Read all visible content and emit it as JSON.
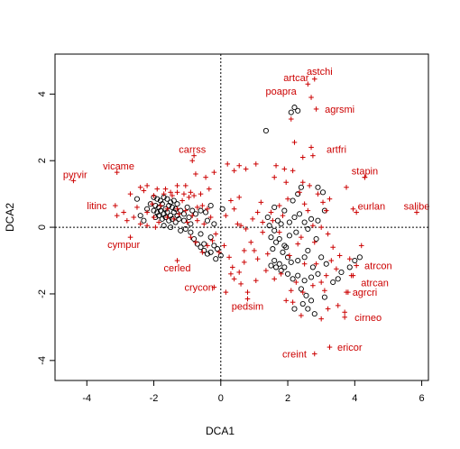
{
  "chart_data": {
    "type": "scatter",
    "title": "",
    "xlabel": "DCA1",
    "ylabel": "DCA2",
    "xlim": [
      -4.95,
      6.2
    ],
    "ylim": [
      -4.6,
      5.2
    ],
    "xticks": [
      "-4",
      "-2",
      "0",
      "2",
      "4",
      "6"
    ],
    "yticks": [
      "-4",
      "-2",
      "0",
      "2",
      "4"
    ],
    "reference_lines": {
      "x": 0,
      "y": 0,
      "style": "dotted"
    },
    "grid": false,
    "legend": "none",
    "colors": {
      "sites": "#000000",
      "species": "#cc0000"
    },
    "sites": [
      [
        -2.0,
        0.9
      ],
      [
        -1.9,
        0.85
      ],
      [
        -1.8,
        0.8
      ],
      [
        -1.7,
        0.9
      ],
      [
        -1.6,
        0.85
      ],
      [
        -1.5,
        0.75
      ],
      [
        -1.4,
        0.8
      ],
      [
        -1.3,
        0.7
      ],
      [
        -2.1,
        0.7
      ],
      [
        -1.95,
        0.65
      ],
      [
        -1.85,
        0.6
      ],
      [
        -1.75,
        0.7
      ],
      [
        -1.65,
        0.55
      ],
      [
        -1.55,
        0.65
      ],
      [
        -1.45,
        0.6
      ],
      [
        -1.35,
        0.55
      ],
      [
        -2.0,
        0.5
      ],
      [
        -1.9,
        0.45
      ],
      [
        -1.8,
        0.5
      ],
      [
        -1.7,
        0.4
      ],
      [
        -1.6,
        0.45
      ],
      [
        -1.5,
        0.35
      ],
      [
        -1.4,
        0.45
      ],
      [
        -1.3,
        0.35
      ],
      [
        -1.2,
        0.5
      ],
      [
        -1.1,
        0.4
      ],
      [
        -1.0,
        0.6
      ],
      [
        -0.95,
        0.3
      ],
      [
        -0.85,
        0.5
      ],
      [
        -0.75,
        0.4
      ],
      [
        -0.6,
        0.5
      ],
      [
        -0.45,
        0.45
      ],
      [
        -1.95,
        0.3
      ],
      [
        -1.85,
        0.35
      ],
      [
        -1.75,
        0.25
      ],
      [
        -1.65,
        0.3
      ],
      [
        -1.55,
        0.2
      ],
      [
        -1.45,
        0.25
      ],
      [
        -1.35,
        0.15
      ],
      [
        -1.25,
        0.25
      ],
      [
        -2.4,
        0.35
      ],
      [
        -2.2,
        0.55
      ],
      [
        -2.3,
        0.2
      ],
      [
        -2.5,
        0.85
      ],
      [
        -1.7,
        0.05
      ],
      [
        -1.5,
        0.0
      ],
      [
        -1.1,
        0.2
      ],
      [
        -0.9,
        0.1
      ],
      [
        -1.2,
        -0.1
      ],
      [
        -0.9,
        -0.15
      ],
      [
        -0.8,
        -0.35
      ],
      [
        -0.7,
        -0.5
      ],
      [
        -0.6,
        -0.6
      ],
      [
        -0.5,
        -0.7
      ],
      [
        -0.4,
        -0.8
      ],
      [
        -0.3,
        -0.75
      ],
      [
        -0.5,
        -0.5
      ],
      [
        -0.3,
        -0.3
      ],
      [
        -0.2,
        -0.55
      ],
      [
        -0.1,
        -0.65
      ],
      [
        0.0,
        -0.85
      ],
      [
        -0.15,
        -0.95
      ],
      [
        -0.3,
        0.65
      ],
      [
        -0.4,
        0.2
      ],
      [
        -0.6,
        -0.2
      ],
      [
        -1.05,
        -0.05
      ],
      [
        -0.2,
        0.1
      ],
      [
        0.05,
        0.55
      ],
      [
        1.35,
        2.9
      ],
      [
        2.1,
        3.45
      ],
      [
        2.3,
        3.5
      ],
      [
        2.2,
        3.6
      ],
      [
        1.6,
        0.6
      ],
      [
        1.9,
        0.5
      ],
      [
        2.2,
        0.3
      ],
      [
        2.35,
        0.4
      ],
      [
        2.7,
        0.25
      ],
      [
        2.5,
        0.15
      ],
      [
        2.9,
        0.2
      ],
      [
        3.1,
        0.5
      ],
      [
        2.4,
        1.2
      ],
      [
        2.3,
        1.0
      ],
      [
        3.05,
        1.05
      ],
      [
        2.9,
        1.2
      ],
      [
        2.15,
        0.8
      ],
      [
        1.45,
        0.05
      ],
      [
        1.6,
        -0.1
      ],
      [
        1.8,
        0.1
      ],
      [
        1.5,
        -0.3
      ],
      [
        1.65,
        -0.45
      ],
      [
        1.75,
        -0.35
      ],
      [
        1.9,
        -0.55
      ],
      [
        2.05,
        -0.25
      ],
      [
        1.55,
        -0.65
      ],
      [
        1.85,
        -0.75
      ],
      [
        2.0,
        -0.9
      ],
      [
        1.6,
        -1.0
      ],
      [
        1.75,
        -1.1
      ],
      [
        1.9,
        -1.2
      ],
      [
        2.1,
        -1.05
      ],
      [
        2.3,
        -1.0
      ],
      [
        2.5,
        -0.9
      ],
      [
        2.6,
        -0.7
      ],
      [
        2.75,
        -1.2
      ],
      [
        2.9,
        -1.4
      ],
      [
        2.7,
        -1.5
      ],
      [
        2.5,
        -1.6
      ],
      [
        2.3,
        -1.45
      ],
      [
        2.15,
        -1.55
      ],
      [
        2.0,
        -1.4
      ],
      [
        1.8,
        -1.3
      ],
      [
        1.65,
        -1.2
      ],
      [
        1.5,
        -1.15
      ],
      [
        2.4,
        -1.85
      ],
      [
        2.55,
        -2.05
      ],
      [
        2.7,
        -2.2
      ],
      [
        2.45,
        -2.3
      ],
      [
        2.2,
        -2.45
      ],
      [
        2.6,
        -2.45
      ],
      [
        2.8,
        -2.6
      ],
      [
        3.1,
        -2.1
      ],
      [
        3.35,
        -1.65
      ],
      [
        3.6,
        -1.35
      ],
      [
        3.85,
        -1.2
      ],
      [
        4.0,
        -1.0
      ],
      [
        4.15,
        -0.9
      ],
      [
        3.5,
        -1.55
      ],
      [
        3.15,
        -1.1
      ],
      [
        1.95,
        -0.6
      ],
      [
        2.85,
        -0.35
      ],
      [
        3.0,
        -0.9
      ],
      [
        1.4,
        0.3
      ],
      [
        2.05,
        0.15
      ],
      [
        2.6,
        -0.05
      ],
      [
        2.25,
        -0.15
      ],
      [
        1.7,
        0.2
      ]
    ],
    "species_points": [
      [
        -2.3,
        1.1
      ],
      [
        -2.0,
        0.95
      ],
      [
        -1.8,
        0.65
      ],
      [
        -1.6,
        0.55
      ],
      [
        -1.45,
        0.95
      ],
      [
        -1.3,
        0.55
      ],
      [
        -1.15,
        0.8
      ],
      [
        -0.95,
        0.9
      ],
      [
        -0.8,
        0.95
      ],
      [
        -0.7,
        0.6
      ],
      [
        -0.55,
        0.65
      ],
      [
        -0.4,
        0.55
      ],
      [
        -2.5,
        0.6
      ],
      [
        -2.2,
        0.45
      ],
      [
        -2.0,
        0.3
      ],
      [
        -1.85,
        0.15
      ],
      [
        -1.6,
        0.3
      ],
      [
        -1.4,
        0.25
      ],
      [
        -1.25,
        0.4
      ],
      [
        -1.05,
        0.5
      ],
      [
        -0.85,
        0.35
      ],
      [
        -0.7,
        0.2
      ],
      [
        -0.5,
        0.1
      ],
      [
        -0.3,
        0.3
      ],
      [
        -1.7,
        1.0
      ],
      [
        -1.5,
        1.05
      ],
      [
        -1.3,
        1.05
      ],
      [
        -1.1,
        1.0
      ],
      [
        -0.9,
        1.05
      ],
      [
        -0.6,
        1.0
      ],
      [
        -2.7,
        1.0
      ],
      [
        -2.9,
        0.45
      ],
      [
        -3.1,
        0.35
      ],
      [
        -2.8,
        0.2
      ],
      [
        -2.6,
        0.3
      ],
      [
        -2.4,
        0.1
      ],
      [
        -2.2,
        0.05
      ],
      [
        -1.95,
        0.0
      ],
      [
        -2.05,
        0.7
      ],
      [
        -1.9,
        1.15
      ],
      [
        -1.0,
        0.15
      ],
      [
        -0.9,
        -0.3
      ],
      [
        -0.75,
        -0.45
      ],
      [
        -0.55,
        -0.75
      ],
      [
        -0.4,
        -0.55
      ],
      [
        -0.25,
        -0.4
      ],
      [
        -0.15,
        -0.2
      ],
      [
        -0.05,
        -0.75
      ],
      [
        0.1,
        -0.55
      ],
      [
        0.25,
        -0.9
      ],
      [
        0.35,
        -1.2
      ],
      [
        0.55,
        -1.35
      ],
      [
        0.7,
        -0.7
      ],
      [
        0.9,
        -0.45
      ],
      [
        1.1,
        -0.95
      ],
      [
        1.25,
        -0.15
      ],
      [
        0.5,
        0.1
      ],
      [
        0.4,
        0.55
      ],
      [
        0.3,
        0.8
      ],
      [
        0.55,
        0.9
      ],
      [
        0.6,
        0.05
      ],
      [
        0.15,
        0.35
      ],
      [
        0.75,
        -0.05
      ],
      [
        0.95,
        0.25
      ],
      [
        1.1,
        0.45
      ],
      [
        1.2,
        0.75
      ],
      [
        1.25,
        0.15
      ],
      [
        -0.35,
        1.15
      ],
      [
        -1.3,
        1.25
      ],
      [
        -1.05,
        1.25
      ],
      [
        -0.75,
        1.6
      ],
      [
        -0.85,
        2.0
      ],
      [
        -2.2,
        1.25
      ],
      [
        -2.4,
        1.2
      ],
      [
        -1.65,
        1.15
      ],
      [
        -0.45,
        1.5
      ],
      [
        -0.2,
        1.65
      ],
      [
        0.2,
        1.9
      ],
      [
        0.4,
        1.7
      ],
      [
        0.55,
        1.85
      ],
      [
        0.75,
        1.75
      ],
      [
        1.05,
        1.9
      ],
      [
        1.65,
        1.85
      ],
      [
        1.9,
        1.75
      ],
      [
        2.15,
        1.7
      ],
      [
        2.45,
        1.35
      ],
      [
        2.65,
        1.25
      ],
      [
        3.05,
        0.75
      ],
      [
        3.25,
        0.85
      ],
      [
        2.5,
        0.7
      ],
      [
        2.0,
        0.85
      ],
      [
        1.75,
        0.65
      ],
      [
        1.5,
        0.45
      ],
      [
        2.75,
        0.05
      ],
      [
        3.0,
        0.0
      ],
      [
        3.2,
        -0.2
      ],
      [
        2.4,
        -0.3
      ],
      [
        2.3,
        -0.5
      ],
      [
        2.5,
        -1.1
      ],
      [
        2.85,
        -1.1
      ],
      [
        3.3,
        -1.0
      ],
      [
        3.45,
        -1.25
      ],
      [
        3.15,
        -1.45
      ],
      [
        3.0,
        -1.65
      ],
      [
        2.75,
        -1.75
      ],
      [
        2.45,
        -1.95
      ],
      [
        2.25,
        -1.65
      ],
      [
        2.1,
        -1.9
      ],
      [
        1.95,
        -2.2
      ],
      [
        2.15,
        -2.25
      ],
      [
        2.4,
        -2.65
      ],
      [
        3.0,
        -2.75
      ],
      [
        3.2,
        -2.45
      ],
      [
        3.5,
        -2.35
      ],
      [
        3.7,
        -2.55
      ],
      [
        3.75,
        -1.95
      ],
      [
        1.8,
        -1.4
      ],
      [
        1.6,
        -1.55
      ],
      [
        1.4,
        -0.8
      ],
      [
        1.35,
        -1.3
      ],
      [
        1.05,
        -1.6
      ],
      [
        0.8,
        -1.95
      ],
      [
        0.6,
        -1.7
      ],
      [
        0.3,
        -1.4
      ],
      [
        0.15,
        -1.95
      ],
      [
        0.4,
        -1.55
      ],
      [
        0.7,
        -1.05
      ],
      [
        1.0,
        -0.7
      ],
      [
        3.85,
        -0.95
      ],
      [
        3.9,
        -1.45
      ],
      [
        4.2,
        -0.55
      ],
      [
        3.95,
        0.55
      ],
      [
        3.75,
        1.2
      ],
      [
        4.3,
        1.5
      ],
      [
        2.7,
        2.4
      ],
      [
        2.45,
        2.1
      ],
      [
        1.6,
        1.5
      ],
      [
        1.95,
        1.35
      ],
      [
        2.35,
        1.05
      ],
      [
        2.1,
        3.25
      ],
      [
        2.2,
        2.55
      ],
      [
        2.9,
        1.0
      ],
      [
        3.15,
        0.5
      ],
      [
        2.6,
        0.5
      ],
      [
        3.35,
        -0.6
      ],
      [
        3.55,
        -0.85
      ],
      [
        2.05,
        -0.85
      ],
      [
        1.75,
        -0.15
      ],
      [
        1.55,
        0.2
      ],
      [
        1.85,
        0.35
      ],
      [
        2.8,
        -0.45
      ],
      [
        3.1,
        -1.9
      ]
    ],
    "species": [
      {
        "name": "astchi",
        "x": 2.8,
        "y": 4.45,
        "lx": 2.95,
        "ly": 4.5,
        "anchor": "middle",
        "baseline": "bottom"
      },
      {
        "name": "artcar",
        "x": 2.6,
        "y": 4.3,
        "lx": 2.25,
        "ly": 4.3,
        "anchor": "middle",
        "baseline": "bottom"
      },
      {
        "name": "poapra",
        "x": 2.7,
        "y": 3.9,
        "lx": 1.8,
        "ly": 3.9,
        "anchor": "middle",
        "baseline": "bottom"
      },
      {
        "name": "agrsmi",
        "x": 2.85,
        "y": 3.55,
        "lx": 3.55,
        "ly": 3.55,
        "anchor": "middle",
        "baseline": "middle"
      },
      {
        "name": "carrss",
        "x": -0.8,
        "y": 2.15,
        "lx": -0.85,
        "ly": 2.15,
        "anchor": "middle",
        "baseline": "bottom"
      },
      {
        "name": "artfri",
        "x": 2.75,
        "y": 2.15,
        "lx": 3.05,
        "ly": 2.15,
        "anchor": "start",
        "baseline": "bottom"
      },
      {
        "name": "vicame",
        "x": -3.1,
        "y": 1.65,
        "lx": -3.05,
        "ly": 1.65,
        "anchor": "middle",
        "baseline": "bottom"
      },
      {
        "name": "pyrvir",
        "x": -4.4,
        "y": 1.4,
        "lx": -4.35,
        "ly": 1.4,
        "anchor": "middle",
        "baseline": "bottom"
      },
      {
        "name": "stapin",
        "x": 4.3,
        "y": 1.5,
        "lx": 4.3,
        "ly": 1.5,
        "anchor": "middle",
        "baseline": "bottom"
      },
      {
        "name": "litinc",
        "x": -3.15,
        "y": 0.65,
        "lx": -3.7,
        "ly": 0.65,
        "anchor": "middle",
        "baseline": "middle"
      },
      {
        "name": "eurlan",
        "x": 4.05,
        "y": 0.45,
        "lx": 4.5,
        "ly": 0.45,
        "anchor": "middle",
        "baseline": "bottom"
      },
      {
        "name": "salibe",
        "x": 5.85,
        "y": 0.45,
        "lx": 5.85,
        "ly": 0.45,
        "anchor": "middle",
        "baseline": "bottom"
      },
      {
        "name": "cympur",
        "x": -2.7,
        "y": -0.3,
        "lx": -2.9,
        "ly": -0.3,
        "anchor": "middle",
        "baseline": "top"
      },
      {
        "name": "cerled",
        "x": -1.3,
        "y": -1.0,
        "lx": -1.3,
        "ly": -1.0,
        "anchor": "middle",
        "baseline": "top"
      },
      {
        "name": "atrcon",
        "x": 4.05,
        "y": -1.15,
        "lx": 4.7,
        "ly": -1.15,
        "anchor": "middle",
        "baseline": "middle"
      },
      {
        "name": "atrcan",
        "x": 3.95,
        "y": -1.45,
        "lx": 4.6,
        "ly": -1.45,
        "anchor": "middle",
        "baseline": "top"
      },
      {
        "name": "crycon",
        "x": -0.2,
        "y": -1.8,
        "lx": -0.65,
        "ly": -1.8,
        "anchor": "middle",
        "baseline": "middle"
      },
      {
        "name": "agrcri",
        "x": 3.8,
        "y": -1.95,
        "lx": 4.3,
        "ly": -1.95,
        "anchor": "middle",
        "baseline": "middle"
      },
      {
        "name": "pedsim",
        "x": 0.8,
        "y": -2.15,
        "lx": 0.8,
        "ly": -2.15,
        "anchor": "middle",
        "baseline": "top"
      },
      {
        "name": "cirneo",
        "x": 3.7,
        "y": -2.7,
        "lx": 4.4,
        "ly": -2.7,
        "anchor": "middle",
        "baseline": "middle"
      },
      {
        "name": "ericor",
        "x": 3.25,
        "y": -3.6,
        "lx": 3.85,
        "ly": -3.6,
        "anchor": "middle",
        "baseline": "middle"
      },
      {
        "name": "creint",
        "x": 2.8,
        "y": -3.8,
        "lx": 2.2,
        "ly": -3.8,
        "anchor": "middle",
        "baseline": "middle"
      }
    ]
  }
}
